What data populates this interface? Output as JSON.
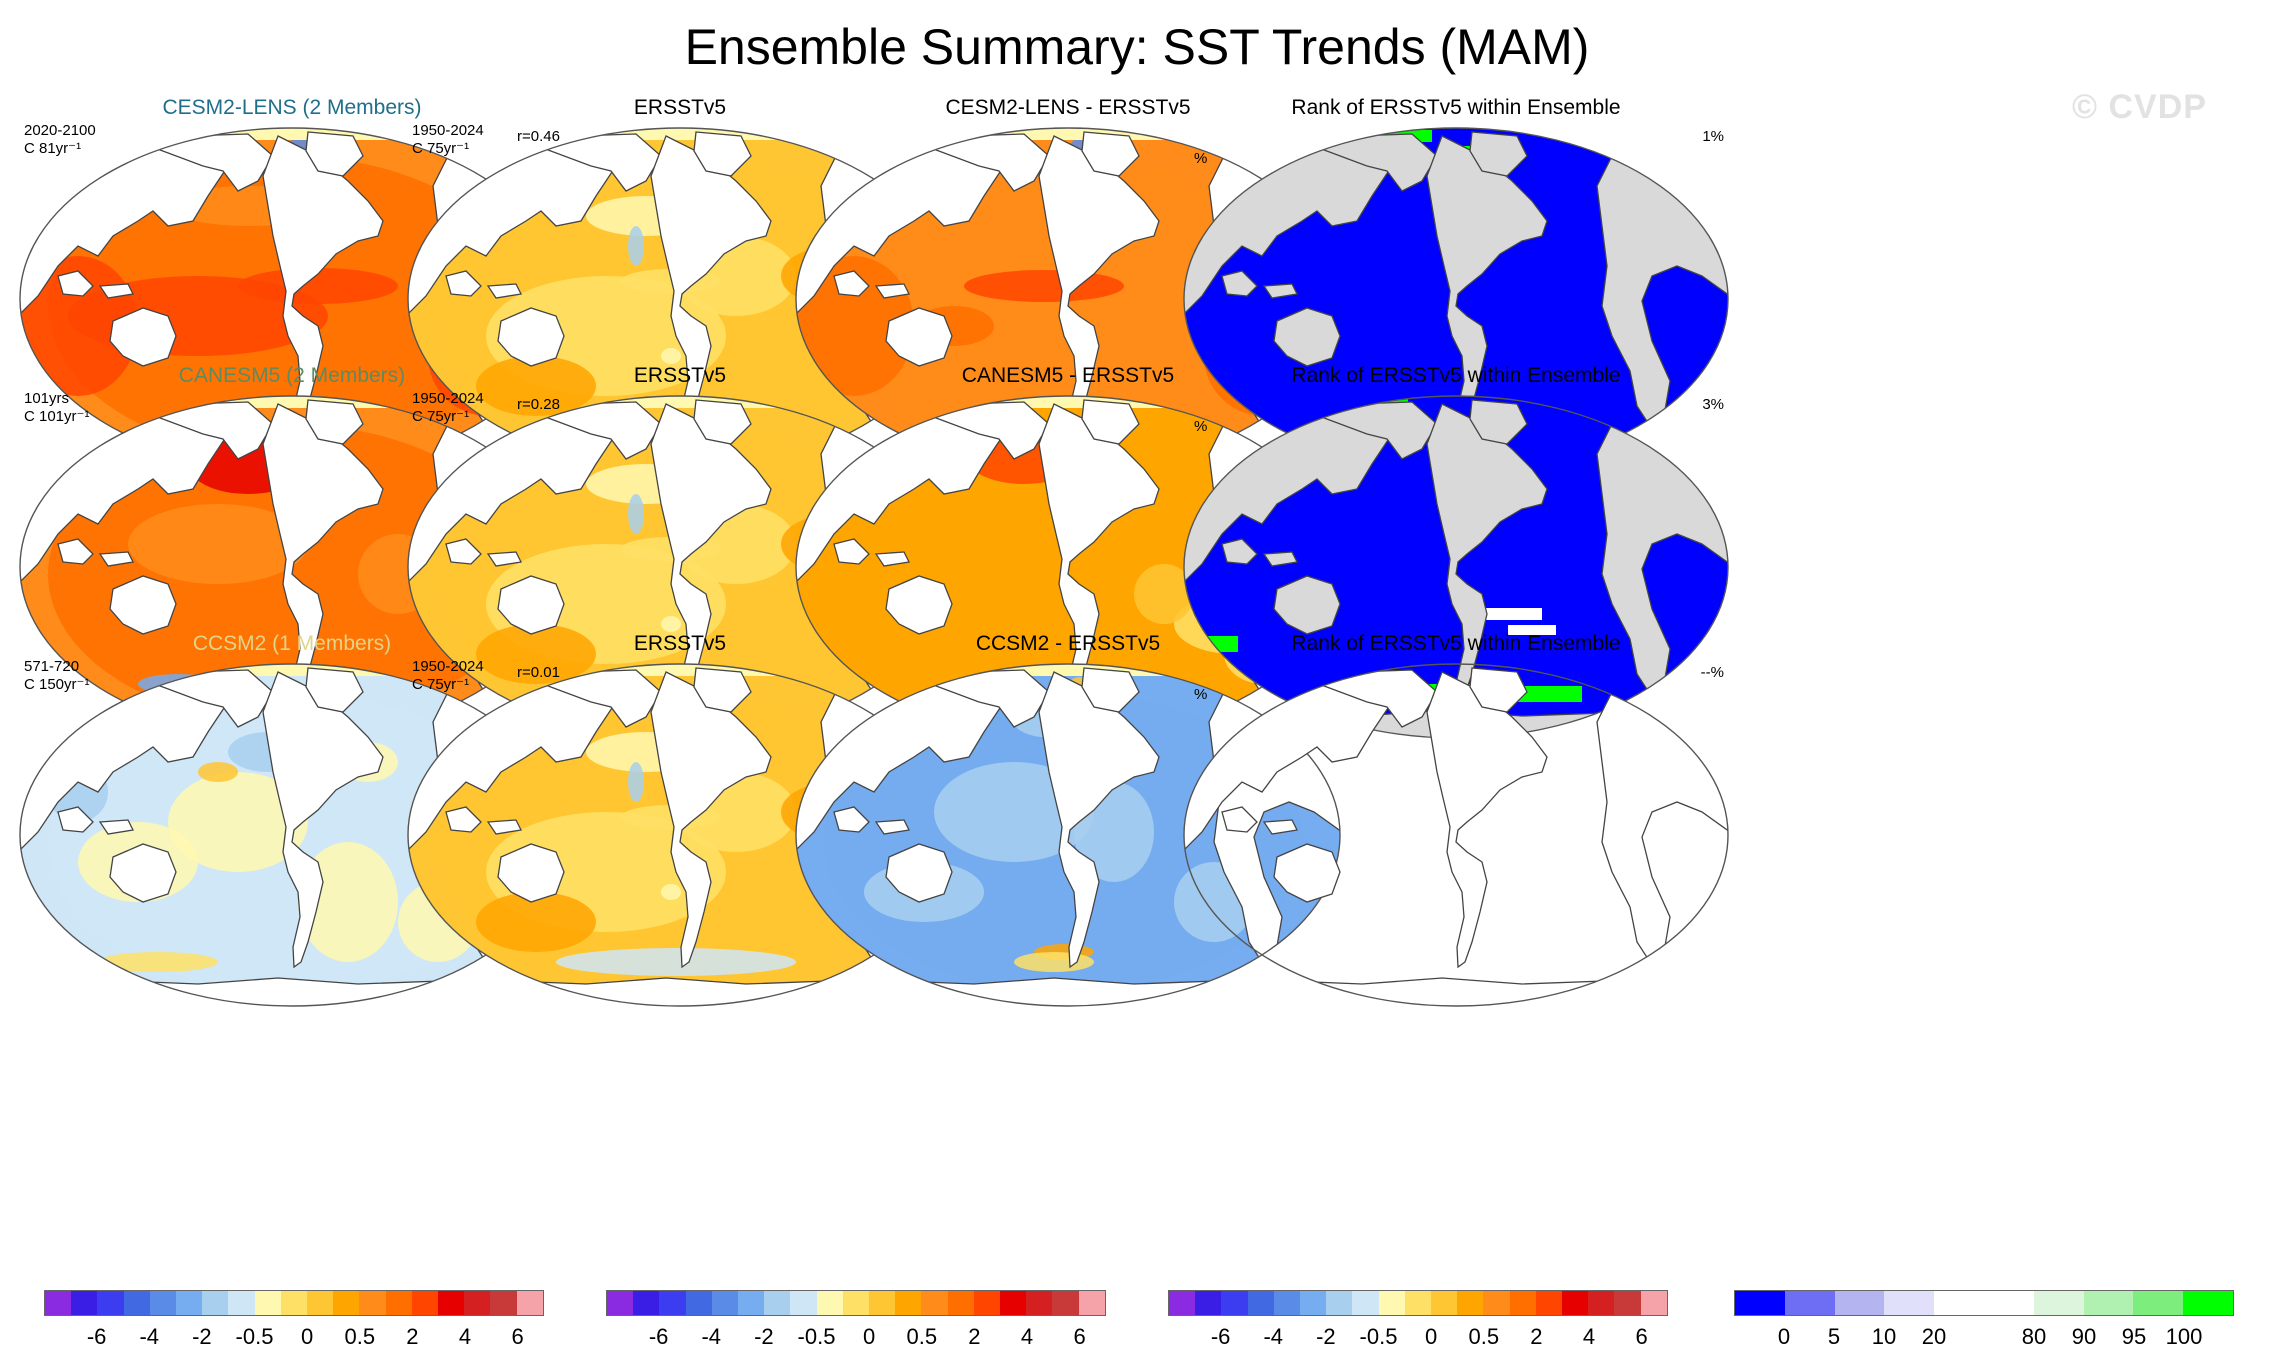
{
  "title": "Ensemble Summary: SST Trends (MAM)",
  "watermark": "© CVDP",
  "rows": [
    {
      "model": {
        "title": "CESM2-LENS (2 Members)",
        "title_color": "#1f6f8b",
        "period": "2020-2100",
        "trend_unit": "C 81yr⁻¹",
        "correlation": "r=0.46",
        "pattern": "warm-strong"
      },
      "obs": {
        "title": "ERSSTv5",
        "period": "1950-2024",
        "trend_unit": "C 75yr⁻¹",
        "pattern": "obs"
      },
      "diff": {
        "title": "CESM2-LENS - ERSSTv5",
        "pattern": "diff-warm"
      },
      "rank": {
        "title": "Rank of ERSSTv5 within Ensemble",
        "percent_label": "%",
        "percent_value": "1%",
        "pattern": "rank"
      }
    },
    {
      "model": {
        "title": "CANESM5 (2 Members)",
        "title_color": "#5e8a5e",
        "period": "101yrs",
        "trend_unit": "C 101yr⁻¹",
        "correlation": "r=0.28",
        "pattern": "warm"
      },
      "obs": {
        "title": "ERSSTv5",
        "period": "1950-2024",
        "trend_unit": "C 75yr⁻¹",
        "pattern": "obs"
      },
      "diff": {
        "title": "CANESM5 - ERSSTv5",
        "pattern": "diff-mixed"
      },
      "rank": {
        "title": "Rank of ERSSTv5 within Ensemble",
        "percent_label": "%",
        "percent_value": "3%",
        "pattern": "rank"
      }
    },
    {
      "model": {
        "title": "CCSM2 (1 Members)",
        "title_color": "#e0d48a",
        "period": "571-720",
        "trend_unit": "C 150yr⁻¹",
        "correlation": "r=0.01",
        "pattern": "neutral"
      },
      "obs": {
        "title": "ERSSTv5",
        "period": "1950-2024",
        "trend_unit": "C 75yr⁻¹",
        "pattern": "obs"
      },
      "diff": {
        "title": "CCSM2 - ERSSTv5",
        "pattern": "diff-cold"
      },
      "rank": {
        "title": "Rank of ERSSTv5 within Ensemble",
        "percent_label": "%",
        "percent_value": "--%",
        "pattern": "blank"
      }
    }
  ],
  "colorbars": {
    "trend": {
      "colors": [
        "#8a2be2",
        "#3a1ee6",
        "#3c3cf0",
        "#4169e1",
        "#5a8be6",
        "#76acf0",
        "#a8cfee",
        "#cfe6f7",
        "#fff8b0",
        "#ffe066",
        "#ffc633",
        "#ffa500",
        "#ff8c1a",
        "#ff6f00",
        "#ff4500",
        "#e60000",
        "#d42020",
        "#c83a3a",
        "#f5a3a8"
      ],
      "labels": [
        "-6",
        "-4",
        "-2",
        "-0.5",
        "0",
        "0.5",
        "2",
        "4",
        "6"
      ],
      "label_boundaries": [
        2,
        4,
        6,
        8,
        10,
        12,
        14,
        16,
        18
      ]
    },
    "rank": {
      "colors": [
        "#0000ff",
        "#6e6ef5",
        "#b4b4f0",
        "#e0e0fa",
        "#ffffff",
        "#ffffff",
        "#ddf5dd",
        "#b0f0b0",
        "#7ded7d",
        "#00ff00"
      ],
      "labels": [
        "0",
        "5",
        "10",
        "20",
        "80",
        "90",
        "95",
        "100"
      ],
      "label_boundaries": [
        1,
        2,
        3,
        4,
        6,
        7,
        8,
        9
      ]
    }
  }
}
